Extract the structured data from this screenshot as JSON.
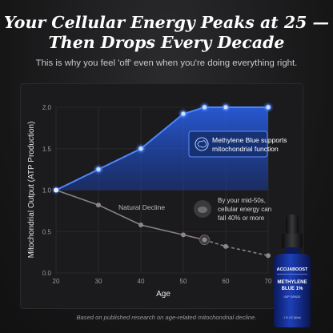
{
  "headline": {
    "line1": "Your Cellular Energy Peaks at 25 —",
    "line2": "Then Drops Every Decade"
  },
  "subhead": "This is why you feel 'off' even when you're doing everything right.",
  "chart_data": {
    "type": "line",
    "xlabel": "Age",
    "ylabel": "Mitochondrial Output (ATP Production)",
    "xlim": [
      20,
      70
    ],
    "ylim": [
      0,
      2.0
    ],
    "x_ticks": [
      20,
      30,
      40,
      50,
      60,
      70
    ],
    "y_ticks": [
      "0.0",
      "0.5",
      "1.0",
      "1.5",
      "2.0"
    ],
    "grid": true,
    "series": [
      {
        "name": "Methylene Blue supports mitochondrial function",
        "color": "#2f6dff",
        "x": [
          20,
          30,
          40,
          50,
          55,
          60,
          70
        ],
        "y": [
          1.0,
          1.25,
          1.5,
          1.92,
          2.0,
          2.0,
          2.0
        ]
      },
      {
        "name": "Natural Decline",
        "color": "#8a8181",
        "x": [
          20,
          30,
          40,
          50,
          55,
          60,
          70
        ],
        "y": [
          1.0,
          0.82,
          0.58,
          0.46,
          0.4,
          0.32,
          0.21
        ],
        "dashed_from_x": 55
      }
    ],
    "annotations": {
      "mid50s_lines": [
        "By your mid-50s,",
        "cellular energy can",
        "fall 40% or more"
      ]
    }
  },
  "callout": {
    "line1": "Methylene Blue supports",
    "line2": "mitochondrial function"
  },
  "decline_label": "Natural Decline",
  "bottle": {
    "brand": "ACCUABOOST",
    "product_line1": "METHYLENE",
    "product_line2": "BLUE 1%",
    "grade": "USP GRADE",
    "volume": "1 FL OZ (30ml)"
  },
  "footnote": "Based on published research on age-related mitochondrial decline.",
  "colors": {
    "accent_blue": "#2f6dff",
    "decline_gray": "#8a8181",
    "background": "#161617"
  }
}
